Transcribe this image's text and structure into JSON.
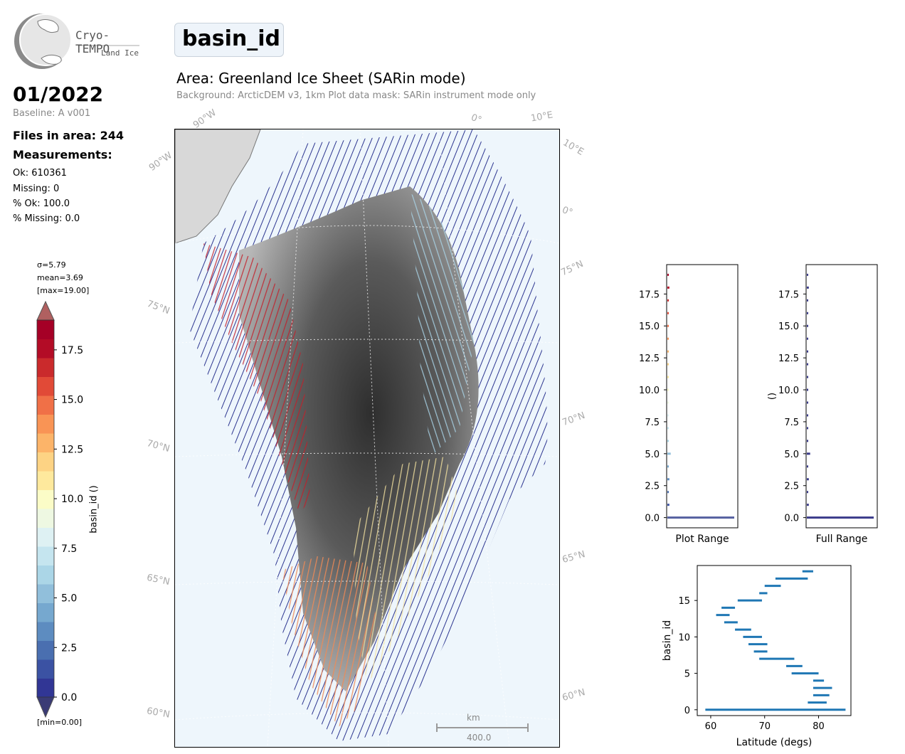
{
  "logo": {
    "name": "Cryo-TEMPO",
    "subtitle": "Land Ice"
  },
  "header": {
    "date": "01/2022",
    "baseline": "Baseline: A v001",
    "files_in_area": "Files in area: 244",
    "measurements_label": "Measurements:",
    "ok": "Ok: 610361",
    "missing": "Missing: 0",
    "pct_ok": "% Ok: 100.0",
    "pct_missing": "% Missing: 0.0"
  },
  "title_box": "basin_id",
  "area_title": "Area: Greenland Ice Sheet (SARin mode)",
  "area_subtitle": "Background: ArcticDEM v3, 1km   Plot data mask: SARin instrument mode only",
  "colorbar": {
    "stats": [
      "σ=5.79",
      "mean=3.69",
      "[max=19.00]"
    ],
    "min_label": "[min=0.00]",
    "label": "basin_id ()",
    "ticks": [
      "0.0",
      "2.5",
      "5.0",
      "7.5",
      "10.0",
      "12.5",
      "15.0",
      "17.5"
    ],
    "colors": [
      "#313695",
      "#3b52a3",
      "#4a6fb0",
      "#5d8cc0",
      "#76a8cf",
      "#91bfdb",
      "#abd6e7",
      "#c5e5ef",
      "#def1f3",
      "#eef8e2",
      "#fbfcc7",
      "#fee99d",
      "#fdd384",
      "#fcb469",
      "#f99455",
      "#f07047",
      "#e14a37",
      "#ca2a2c",
      "#b30c26",
      "#a50026"
    ]
  },
  "map": {
    "lon_labels": [
      "90°W",
      "0°",
      "10°E",
      "90°W",
      "10°E",
      "0°"
    ],
    "lat_labels_left": [
      "75°N",
      "70°N",
      "65°N",
      "60°N"
    ],
    "lat_labels_right": [
      "75°N",
      "70°N",
      "65°N",
      "60°N"
    ],
    "scale_unit": "km",
    "scale_value": "400.0"
  },
  "chart_data": [
    {
      "type": "bar",
      "orientation": "horizontal",
      "xlabel": "Plot Range",
      "ylabel": "",
      "ylim": [
        -0.8,
        19.8
      ],
      "yticks": [
        "0.0",
        "2.5",
        "5.0",
        "7.5",
        "10.0",
        "12.5",
        "15.0",
        "17.5"
      ],
      "categories": [
        0,
        1,
        2,
        3,
        4,
        5,
        6,
        7,
        8,
        9,
        10,
        11,
        12,
        13,
        14,
        15,
        16,
        17,
        18,
        19
      ],
      "values": [
        100,
        3,
        1,
        3,
        1,
        5,
        1,
        2,
        0.5,
        0.5,
        0.5,
        0.5,
        0.5,
        0.5,
        0.5,
        2,
        0.5,
        0.5,
        3,
        1
      ]
    },
    {
      "type": "bar",
      "orientation": "horizontal",
      "xlabel": "Full Range",
      "ylabel": "()",
      "ylim": [
        -0.8,
        19.8
      ],
      "yticks": [
        "0.0",
        "2.5",
        "5.0",
        "7.5",
        "10.0",
        "12.5",
        "15.0",
        "17.5"
      ],
      "categories": [
        0,
        1,
        2,
        3,
        4,
        5,
        6,
        7,
        8,
        9,
        10,
        11,
        12,
        13,
        14,
        15,
        16,
        17,
        18,
        19
      ],
      "values": [
        100,
        3,
        1,
        3,
        1,
        5,
        1,
        2,
        0.5,
        0.5,
        0.5,
        0.5,
        0.5,
        0.5,
        0.5,
        2,
        0.5,
        0.5,
        3,
        1
      ]
    },
    {
      "type": "range",
      "xlabel": "Latitude (degs)",
      "ylabel": "basin_id",
      "xlim": [
        57.5,
        86
      ],
      "ylim": [
        -0.8,
        19.8
      ],
      "xticks": [
        "60",
        "70",
        "80"
      ],
      "yticks": [
        "0",
        "5",
        "10",
        "15"
      ],
      "ranges": [
        {
          "id": 0,
          "min": 59,
          "max": 85
        },
        {
          "id": 1,
          "min": 78,
          "max": 81.5
        },
        {
          "id": 2,
          "min": 79,
          "max": 82
        },
        {
          "id": 3,
          "min": 79,
          "max": 82.5
        },
        {
          "id": 4,
          "min": 79,
          "max": 81
        },
        {
          "id": 5,
          "min": 75,
          "max": 80
        },
        {
          "id": 6,
          "min": 74,
          "max": 77
        },
        {
          "id": 7,
          "min": 69,
          "max": 75.5
        },
        {
          "id": 8,
          "min": 68,
          "max": 70.5
        },
        {
          "id": 9,
          "min": 67,
          "max": 70.5
        },
        {
          "id": 10,
          "min": 66,
          "max": 69.5
        },
        {
          "id": 11,
          "min": 64.5,
          "max": 67.5
        },
        {
          "id": 12,
          "min": 62.5,
          "max": 65
        },
        {
          "id": 13,
          "min": 61,
          "max": 63.5
        },
        {
          "id": 14,
          "min": 62,
          "max": 64.5
        },
        {
          "id": 15,
          "min": 65,
          "max": 69.5
        },
        {
          "id": 16,
          "min": 69,
          "max": 70.5
        },
        {
          "id": 17,
          "min": 70,
          "max": 73
        },
        {
          "id": 18,
          "min": 72,
          "max": 78
        },
        {
          "id": 19,
          "min": 77,
          "max": 79
        }
      ]
    }
  ]
}
